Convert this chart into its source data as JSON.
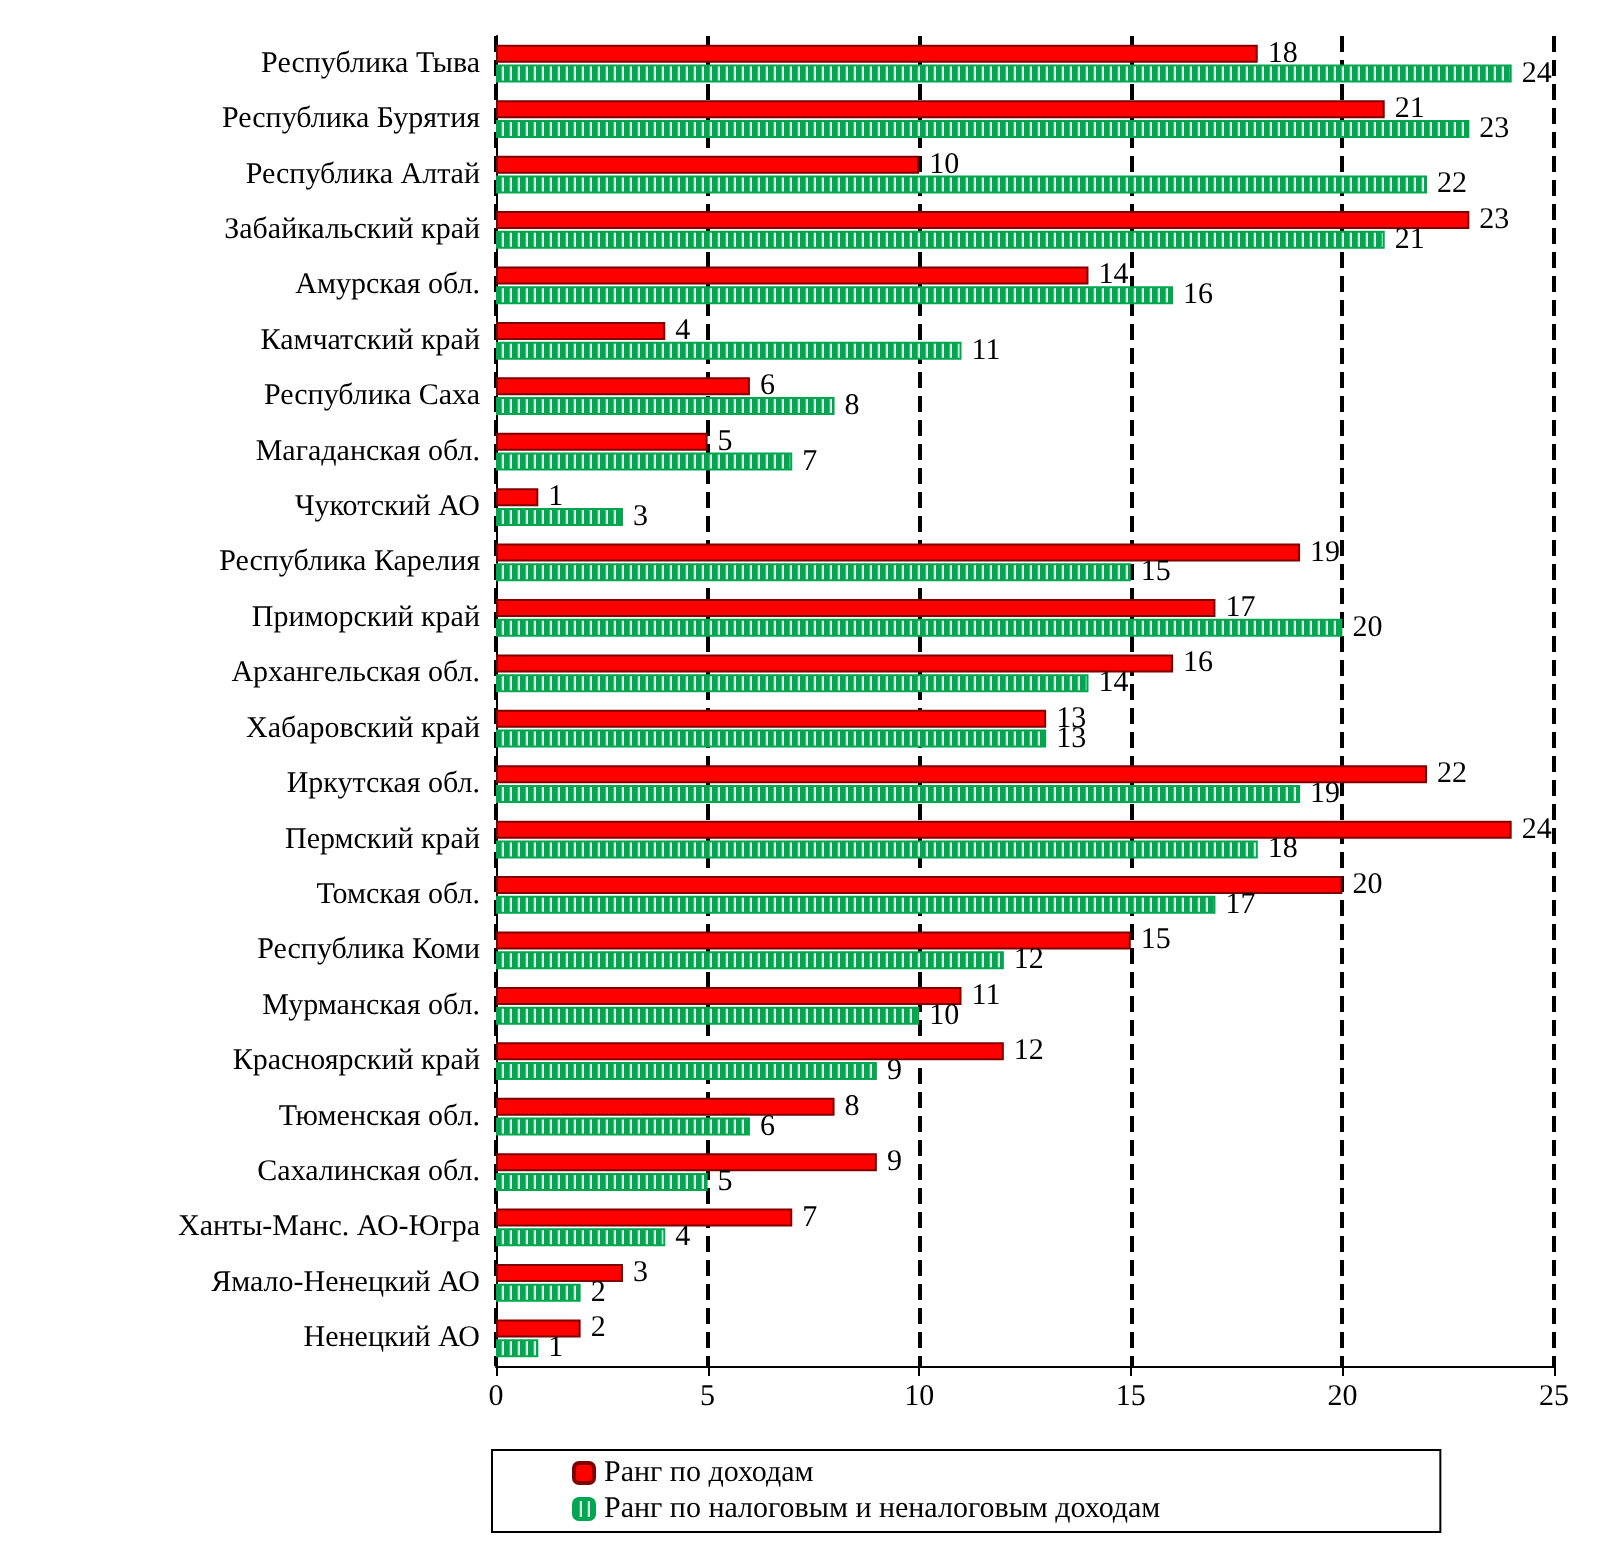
{
  "chart_data": {
    "type": "bar",
    "orientation": "horizontal",
    "categories": [
      "Республика Тыва",
      "Республика Бурятия",
      "Республика Алтай",
      "Забайкальский край",
      "Амурская обл.",
      "Камчатский край",
      "Республика Саха",
      "Магаданская обл.",
      "Чукотский АО",
      "Республика Карелия",
      "Приморский край",
      "Архангельская обл.",
      "Хабаровский край",
      "Иркутская обл.",
      "Пермский край",
      "Томская обл.",
      "Республика Коми",
      "Мурманская обл.",
      "Красноярский край",
      "Тюменская обл.",
      "Сахалинская обл.",
      "Ханты-Манс. АО-Югра",
      "Ямало-Ненецкий АО",
      "Ненецкий АО"
    ],
    "series": [
      {
        "name": "Ранг по доходам",
        "color": "#ff0000",
        "values": [
          18,
          21,
          10,
          23,
          14,
          4,
          6,
          5,
          1,
          19,
          17,
          16,
          13,
          22,
          24,
          20,
          15,
          11,
          12,
          8,
          9,
          7,
          3,
          2
        ]
      },
      {
        "name": "Ранг по налоговым и неналоговым доходам",
        "color": "#00a650",
        "values": [
          24,
          23,
          22,
          21,
          16,
          11,
          8,
          7,
          3,
          15,
          20,
          14,
          13,
          19,
          18,
          17,
          12,
          10,
          9,
          6,
          5,
          4,
          2,
          1
        ]
      }
    ],
    "xlim": [
      0,
      25
    ],
    "xticks": [
      0,
      5,
      10,
      15,
      20,
      25
    ],
    "grid": "x",
    "legend": "bottom",
    "data_labels": true
  }
}
